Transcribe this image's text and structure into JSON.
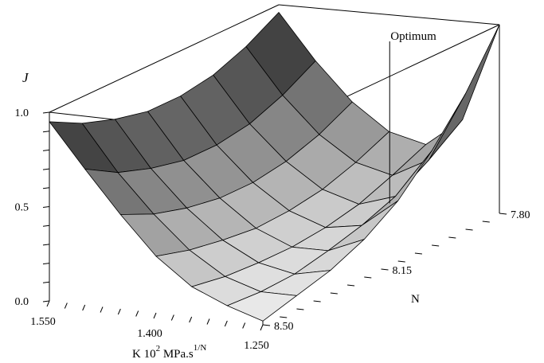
{
  "chart_data": {
    "type": "surface3d",
    "z_label": "J",
    "x_label_main": "K  10",
    "x_label_exp": "2",
    "x_label_unit": " MPa.s",
    "x_label_unit_exp": "1/N",
    "y_label": "N",
    "z_ticks": [
      "0.0",
      "0.5",
      "1.0"
    ],
    "x_ticks": [
      "1.550",
      "1.400",
      "1.250"
    ],
    "y_ticks": [
      "8.50",
      "8.15",
      "7.80"
    ],
    "zlim": [
      0,
      1
    ],
    "xlim": [
      1.55,
      1.25
    ],
    "ylim": [
      8.5,
      7.8
    ],
    "annotation": {
      "text": "Optimum",
      "K": 1.34,
      "N": 7.93
    },
    "grid_K": [
      1.55,
      1.5,
      1.45,
      1.4,
      1.35,
      1.3,
      1.25
    ],
    "grid_N": [
      8.5,
      8.4,
      8.3,
      8.2,
      8.1,
      8.0,
      7.9,
      7.8
    ],
    "z_grid_rows_by_N": [
      [
        0.95,
        0.72,
        0.5,
        0.3,
        0.16,
        0.08,
        0.02
      ],
      [
        0.86,
        0.62,
        0.42,
        0.25,
        0.13,
        0.07,
        0.07
      ],
      [
        0.8,
        0.56,
        0.37,
        0.22,
        0.12,
        0.08,
        0.12
      ],
      [
        0.76,
        0.52,
        0.34,
        0.2,
        0.12,
        0.12,
        0.2
      ],
      [
        0.76,
        0.52,
        0.34,
        0.21,
        0.14,
        0.17,
        0.32
      ],
      [
        0.79,
        0.55,
        0.37,
        0.24,
        0.18,
        0.24,
        0.5
      ],
      [
        0.86,
        0.62,
        0.43,
        0.3,
        0.25,
        0.35,
        0.72
      ],
      [
        0.96,
        0.72,
        0.52,
        0.38,
        0.33,
        0.48,
        1.0
      ]
    ]
  }
}
